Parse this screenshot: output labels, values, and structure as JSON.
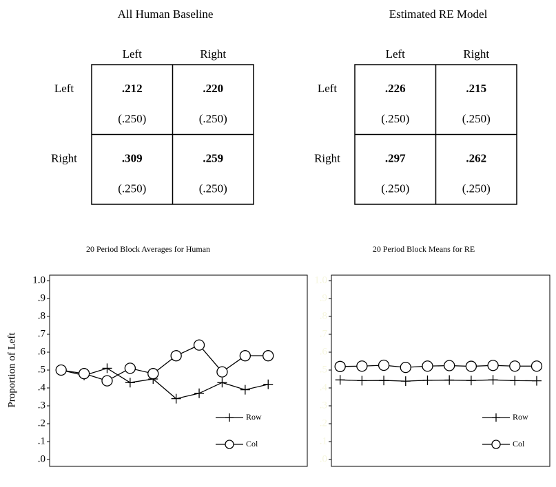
{
  "tables": [
    {
      "title": "All Human Baseline",
      "columns": [
        "Left",
        "Right"
      ],
      "rows": [
        {
          "label": "Left",
          "cells": [
            {
              "value": ".212",
              "sub": "(.250)"
            },
            {
              "value": ".220",
              "sub": "(.250)"
            }
          ]
        },
        {
          "label": "Right",
          "cells": [
            {
              "value": ".309",
              "sub": "(.250)"
            },
            {
              "value": ".259",
              "sub": "(.250)"
            }
          ]
        }
      ]
    },
    {
      "title": "Estimated RE Model",
      "columns": [
        "Left",
        "Right"
      ],
      "rows": [
        {
          "label": "Left",
          "cells": [
            {
              "value": ".226",
              "sub": "(.250)"
            },
            {
              "value": ".215",
              "sub": "(.250)"
            }
          ]
        },
        {
          "label": "Right",
          "cells": [
            {
              "value": ".297",
              "sub": "(.250)"
            },
            {
              "value": ".262",
              "sub": "(.250)"
            }
          ]
        }
      ]
    }
  ],
  "chart_data": [
    {
      "type": "line",
      "title": "20 Period Block Averages for Human",
      "y_label": "Proportion of Left",
      "x": [
        1,
        2,
        3,
        4,
        5,
        6,
        7,
        8,
        9,
        10
      ],
      "xlim": [
        0.5,
        11.7
      ],
      "ylim": [
        0,
        1
      ],
      "yticks": [
        {
          "value": 0,
          "label": ".0"
        },
        {
          "value": 0.1,
          "label": ".1"
        },
        {
          "value": 0.2,
          "label": ".2"
        },
        {
          "value": 0.3,
          "label": ".3"
        },
        {
          "value": 0.4,
          "label": ".4"
        },
        {
          "value": 0.5,
          "label": ".5"
        },
        {
          "value": 0.6,
          "label": ".6"
        },
        {
          "value": 0.7,
          "label": ".7"
        },
        {
          "value": 0.8,
          "label": ".8"
        },
        {
          "value": 0.9,
          "label": ".9"
        },
        {
          "value": 1,
          "label": "1.0"
        }
      ],
      "tick_label_color": "#000000",
      "legend": "lower right",
      "series": [
        {
          "name": "Row",
          "marker": "plus",
          "color": "#000000",
          "values": [
            0.5,
            0.47,
            0.51,
            0.43,
            0.45,
            0.34,
            0.37,
            0.43,
            0.39,
            0.42
          ]
        },
        {
          "name": "Col",
          "marker": "circle",
          "color": "#000000",
          "values": [
            0.5,
            0.48,
            0.44,
            0.51,
            0.48,
            0.58,
            0.64,
            0.49,
            0.58,
            0.58
          ]
        }
      ]
    },
    {
      "type": "line",
      "title": "20 Period Block Means for RE",
      "x": [
        1,
        2,
        3,
        4,
        5,
        6,
        7,
        8,
        9,
        10
      ],
      "xlim": [
        0.6,
        10.6
      ],
      "ylim": [
        0,
        1
      ],
      "yticks": [
        {
          "value": 0,
          "label": ".0"
        },
        {
          "value": 0.1,
          "label": ".1"
        },
        {
          "value": 0.2,
          "label": ".2"
        },
        {
          "value": 0.3,
          "label": ".3"
        },
        {
          "value": 0.4,
          "label": ".4"
        },
        {
          "value": 0.5,
          "label": ".5"
        },
        {
          "value": 0.6,
          "label": ".6"
        },
        {
          "value": 0.7,
          "label": ".7"
        },
        {
          "value": 0.8,
          "label": ".8"
        },
        {
          "value": 0.9,
          "label": ".9"
        },
        {
          "value": 1,
          "label": "1.0"
        }
      ],
      "tick_label_color": "#f6f6de",
      "legend": "lower right",
      "series": [
        {
          "name": "Row",
          "marker": "plus",
          "color": "#000000",
          "values": [
            0.445,
            0.441,
            0.442,
            0.438,
            0.443,
            0.444,
            0.442,
            0.445,
            0.441,
            0.44
          ]
        },
        {
          "name": "Col",
          "marker": "circle",
          "color": "#000000",
          "values": [
            0.52,
            0.522,
            0.527,
            0.515,
            0.522,
            0.525,
            0.521,
            0.526,
            0.522,
            0.522
          ]
        }
      ]
    }
  ]
}
